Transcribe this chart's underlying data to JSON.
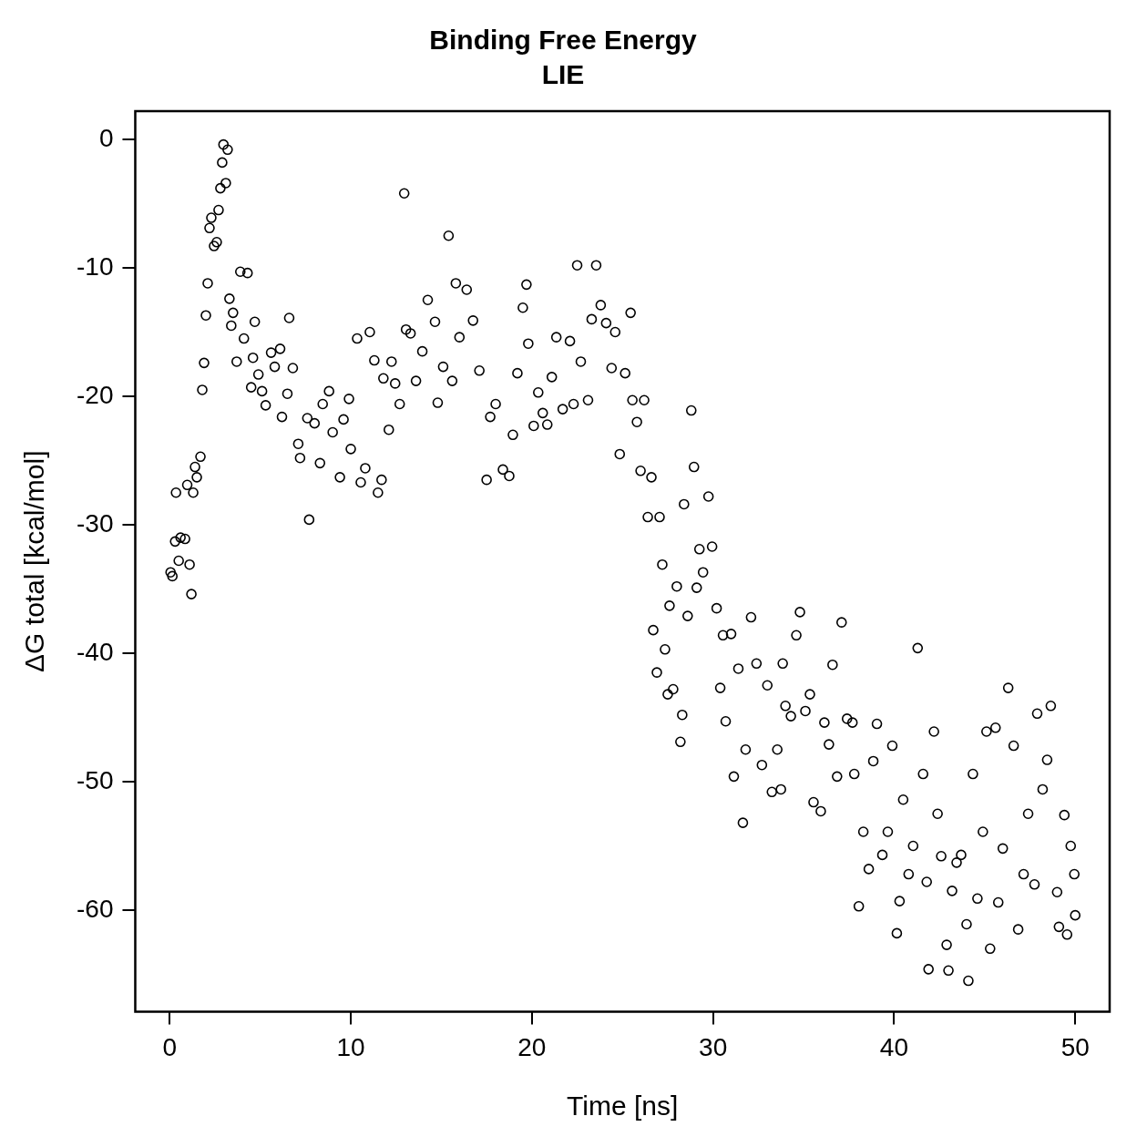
{
  "chart_data": {
    "type": "scatter",
    "title": "Binding Free Energy",
    "subtitle": "LIE",
    "xlabel": "Time [ns]",
    "ylabel": "ΔG total [kcal/mol]",
    "xlim": [
      -1.9,
      51.9
    ],
    "xticks": [
      0,
      10,
      20,
      30,
      40,
      50
    ],
    "ylim": [
      -67.9,
      2.2
    ],
    "yticks": [
      0,
      -10,
      -20,
      -30,
      -40,
      -50,
      -60
    ],
    "grid": false,
    "legend": false,
    "marker": "circle",
    "series": [
      {
        "color": "#000000",
        "x": [
          0.05,
          0.15,
          0.3,
          0.35,
          0.5,
          0.6,
          0.85,
          0.97,
          1.1,
          1.2,
          1.3,
          1.4,
          1.5,
          1.7,
          1.8,
          1.9,
          2.0,
          2.1,
          2.2,
          2.3,
          2.45,
          2.6,
          2.7,
          2.8,
          2.9,
          2.97,
          3.2,
          3.1,
          3.3,
          3.4,
          3.5,
          3.7,
          3.9,
          4.3,
          4.1,
          4.5,
          4.7,
          4.6,
          4.9,
          5.1,
          5.3,
          5.6,
          5.8,
          6.1,
          6.2,
          6.5,
          6.6,
          6.8,
          7.1,
          7.2,
          7.6,
          7.7,
          8.0,
          8.3,
          8.45,
          8.8,
          9.0,
          9.4,
          9.6,
          9.9,
          10.0,
          10.35,
          10.55,
          10.8,
          11.05,
          11.3,
          11.5,
          11.7,
          11.8,
          12.1,
          12.25,
          12.45,
          12.7,
          12.95,
          13.05,
          13.3,
          13.6,
          13.95,
          14.25,
          14.65,
          14.8,
          15.1,
          15.4,
          15.6,
          15.8,
          16.0,
          16.4,
          16.75,
          17.1,
          17.5,
          17.7,
          18.0,
          18.4,
          18.75,
          18.95,
          19.2,
          19.5,
          19.7,
          19.8,
          20.1,
          20.35,
          20.6,
          20.85,
          21.1,
          21.35,
          21.7,
          22.1,
          22.3,
          22.5,
          22.7,
          23.1,
          23.3,
          23.55,
          23.8,
          24.1,
          24.4,
          24.6,
          24.85,
          25.15,
          25.45,
          25.55,
          25.8,
          26.0,
          26.2,
          26.4,
          26.6,
          26.7,
          26.9,
          27.05,
          27.2,
          27.35,
          27.5,
          27.6,
          27.8,
          28.0,
          28.2,
          28.3,
          28.4,
          28.6,
          28.8,
          28.95,
          29.1,
          29.25,
          29.45,
          29.75,
          29.95,
          30.2,
          30.4,
          30.55,
          30.7,
          31.0,
          31.15,
          31.4,
          31.65,
          31.8,
          32.1,
          32.4,
          32.7,
          33.0,
          33.25,
          33.55,
          33.75,
          33.85,
          34.0,
          34.3,
          34.6,
          34.8,
          35.1,
          35.35,
          35.55,
          35.95,
          36.15,
          36.4,
          36.6,
          36.85,
          37.1,
          37.4,
          37.7,
          37.8,
          38.05,
          38.3,
          38.6,
          38.85,
          39.05,
          39.35,
          39.65,
          39.9,
          40.15,
          40.3,
          40.5,
          40.8,
          41.05,
          41.3,
          41.6,
          41.8,
          41.9,
          42.2,
          42.4,
          42.6,
          42.9,
          43.0,
          43.2,
          43.45,
          43.7,
          44.0,
          44.1,
          44.35,
          44.6,
          44.9,
          45.1,
          45.3,
          45.6,
          45.75,
          46.0,
          46.3,
          46.6,
          46.85,
          47.15,
          47.4,
          47.75,
          47.9,
          48.2,
          48.45,
          48.65,
          49.0,
          49.1,
          49.4,
          49.55,
          49.75,
          49.95,
          50.0
        ],
        "values": [
          -33.7,
          -34.0,
          -31.3,
          -27.5,
          -32.8,
          -31.0,
          -31.1,
          -26.9,
          -33.1,
          -35.4,
          -27.5,
          -25.5,
          -26.3,
          -24.7,
          -19.5,
          -17.4,
          -13.7,
          -11.2,
          -6.9,
          -6.1,
          -8.3,
          -8.0,
          -5.5,
          -3.8,
          -1.8,
          -0.4,
          -0.8,
          -3.4,
          -12.4,
          -14.5,
          -13.5,
          -17.3,
          -10.3,
          -10.4,
          -15.5,
          -19.3,
          -14.2,
          -17.0,
          -18.3,
          -19.6,
          -20.7,
          -16.6,
          -17.7,
          -16.3,
          -21.6,
          -19.8,
          -13.9,
          -17.8,
          -23.7,
          -24.8,
          -21.7,
          -29.6,
          -22.1,
          -25.2,
          -20.6,
          -19.6,
          -22.8,
          -26.3,
          -21.8,
          -20.2,
          -24.1,
          -15.5,
          -26.7,
          -25.6,
          -15.0,
          -17.2,
          -27.5,
          -26.5,
          -18.6,
          -22.6,
          -17.3,
          -19.0,
          -20.6,
          -4.2,
          -14.8,
          -15.1,
          -18.8,
          -16.5,
          -12.5,
          -14.2,
          -20.5,
          -17.7,
          -7.5,
          -18.8,
          -11.2,
          -15.4,
          -11.7,
          -14.1,
          -18.0,
          -26.5,
          -21.6,
          -20.6,
          -25.7,
          -26.2,
          -23.0,
          -18.2,
          -13.1,
          -11.3,
          -15.9,
          -22.3,
          -19.7,
          -21.3,
          -22.2,
          -18.5,
          -15.4,
          -21.0,
          -15.7,
          -20.6,
          -9.8,
          -17.3,
          -20.3,
          -14.0,
          -9.8,
          -12.9,
          -14.3,
          -17.8,
          -15.0,
          -24.5,
          -18.2,
          -13.5,
          -20.3,
          -22.0,
          -25.8,
          -20.3,
          -29.4,
          -26.3,
          -38.2,
          -41.5,
          -29.4,
          -33.1,
          -39.7,
          -43.2,
          -36.3,
          -42.8,
          -34.8,
          -46.9,
          -44.8,
          -28.4,
          -37.1,
          -21.1,
          -25.5,
          -34.9,
          -31.9,
          -33.7,
          -27.8,
          -31.7,
          -36.5,
          -42.7,
          -38.6,
          -45.3,
          -38.5,
          -49.6,
          -41.2,
          -53.2,
          -47.5,
          -37.2,
          -40.8,
          -48.7,
          -42.5,
          -50.8,
          -47.5,
          -50.6,
          -40.8,
          -44.1,
          -44.9,
          -38.6,
          -36.8,
          -44.5,
          -43.2,
          -51.6,
          -52.3,
          -45.4,
          -47.1,
          -40.9,
          -49.6,
          -37.6,
          -45.1,
          -45.4,
          -49.4,
          -59.7,
          -53.9,
          -56.8,
          -48.4,
          -45.5,
          -55.7,
          -53.9,
          -47.2,
          -61.8,
          -59.3,
          -51.4,
          -57.2,
          -55.0,
          -39.6,
          -49.4,
          -57.8,
          -64.6,
          -46.1,
          -52.5,
          -55.8,
          -62.7,
          -64.7,
          -58.5,
          -56.3,
          -55.7,
          -61.1,
          -65.5,
          -49.4,
          -59.1,
          -53.9,
          -46.1,
          -63.0,
          -45.8,
          -59.4,
          -55.2,
          -42.7,
          -47.2,
          -61.5,
          -57.2,
          -52.5,
          -58.0,
          -44.7,
          -50.6,
          -48.3,
          -44.1,
          -58.6,
          -61.3,
          -52.6,
          -61.9,
          -55.0,
          -57.2,
          -60.4
        ]
      }
    ]
  }
}
